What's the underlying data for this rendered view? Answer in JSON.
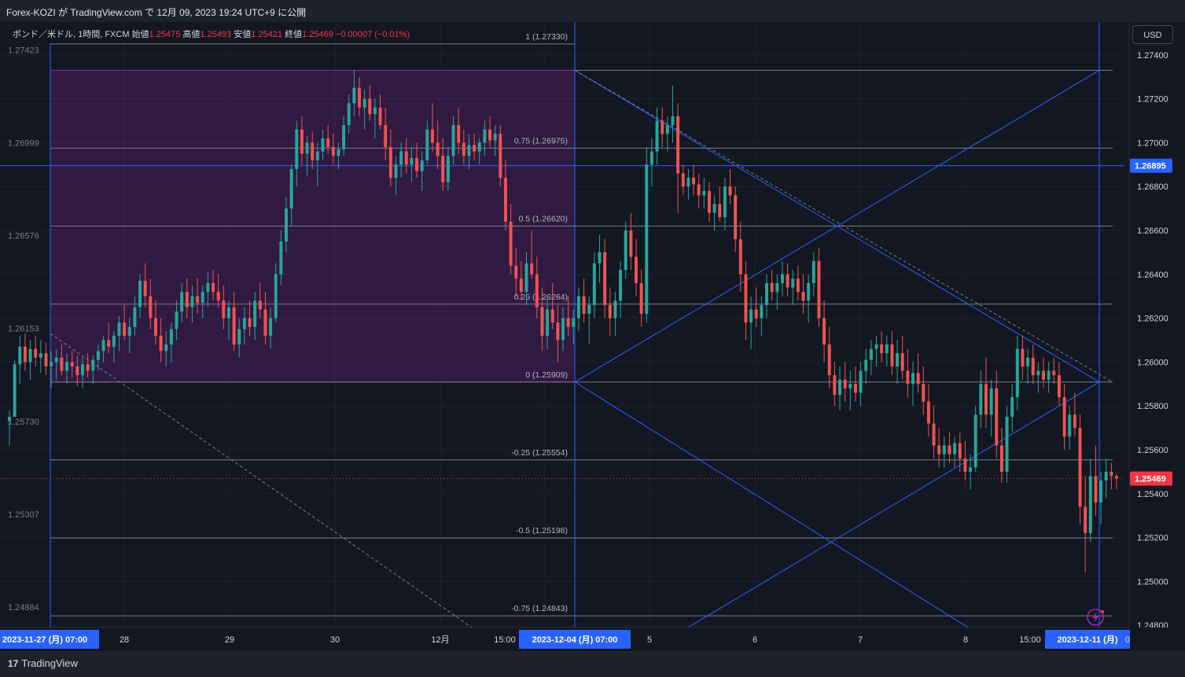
{
  "header": {
    "title": "Forex-KOZI が TradingView.com で 12月 09, 2023 19:24 UTC+9 に公開"
  },
  "legend": {
    "symbol": "ポンド／米ドル, 1時間, FXCM",
    "open_label": "始値",
    "open": "1.25475",
    "high_label": "高値",
    "high": "1.25493",
    "low_label": "安値",
    "low": "1.25421",
    "close_label": "終値",
    "close": "1.25469",
    "change": "−0.00007 (−0.01%)"
  },
  "currency_button": "USD",
  "footer": {
    "brand": "TradingView",
    "brand_mark": "17"
  },
  "colors": {
    "up": "#26a69a",
    "down": "#ef5350",
    "line": "#2962ff",
    "zone": "#9c27b0",
    "background": "#131722"
  },
  "chart_data": {
    "type": "candlestick",
    "symbol": "GBPUSD",
    "timeframe": "1h",
    "ylim": [
      1.2479,
      1.2755
    ],
    "left_scale_ticks": [
      "1.27423",
      "1.26999",
      "1.26576",
      "1.26153",
      "1.25730",
      "1.25307",
      "1.24884"
    ],
    "right_scale_ticks": [
      "1.27400",
      "1.27200",
      "1.27000",
      "1.26800",
      "1.26600",
      "1.26400",
      "1.26200",
      "1.26000",
      "1.25800",
      "1.25600",
      "1.25400",
      "1.25200",
      "1.25000",
      "1.24800"
    ],
    "time_axis_labels": [
      "2023-11-27 (月)  07:00",
      "28",
      "29",
      "30",
      "12月",
      "15:00",
      "2023-12-04 (月)  07:00",
      "5",
      "6",
      "7",
      "8",
      "15:00",
      "2023-12-11 (月)",
      "0"
    ],
    "price_badges": [
      {
        "value": "1.26895",
        "price": 1.26895,
        "color": "#2962ff"
      },
      {
        "value": "1.25469",
        "price": 1.25469,
        "color": "#f23645"
      }
    ],
    "fib_left": {
      "levels": [
        {
          "label": "1 (1.27330)",
          "price": 1.2733
        },
        {
          "label": "0.75 (1.26975)",
          "price": 1.26975
        },
        {
          "label": "0.5 (1.26620)",
          "price": 1.2662
        },
        {
          "label": "0.25 (1.26264)",
          "price": 1.26264
        },
        {
          "label": "0 (1.25909)",
          "price": 1.25909
        },
        {
          "label": "-0.25 (1.25554)",
          "price": 1.25554
        },
        {
          "label": "-0.5 (1.25198)",
          "price": 1.25198
        },
        {
          "label": "-0.75 (1.24843)",
          "price": 1.24843
        }
      ]
    },
    "candles": [
      [
        1.2573,
        1.2578,
        1.2562,
        1.2575
      ],
      [
        1.2575,
        1.2601,
        1.2575,
        1.2599
      ],
      [
        1.2599,
        1.2612,
        1.259,
        1.2607
      ],
      [
        1.2607,
        1.2613,
        1.2596,
        1.26
      ],
      [
        1.26,
        1.261,
        1.2592,
        1.2606
      ],
      [
        1.2606,
        1.2612,
        1.2598,
        1.2602
      ],
      [
        1.2602,
        1.261,
        1.2595,
        1.2604
      ],
      [
        1.2604,
        1.2609,
        1.2594,
        1.2598
      ],
      [
        1.2598,
        1.2605,
        1.2588,
        1.26
      ],
      [
        1.26,
        1.2606,
        1.2592,
        1.2602
      ],
      [
        1.2602,
        1.2608,
        1.2594,
        1.2596
      ],
      [
        1.2596,
        1.2604,
        1.259,
        1.26
      ],
      [
        1.26,
        1.2605,
        1.2593,
        1.2598
      ],
      [
        1.2598,
        1.2603,
        1.2589,
        1.2594
      ],
      [
        1.2594,
        1.2602,
        1.2588,
        1.2599
      ],
      [
        1.2599,
        1.2604,
        1.2593,
        1.2596
      ],
      [
        1.2596,
        1.2603,
        1.259,
        1.2601
      ],
      [
        1.2601,
        1.2608,
        1.2596,
        1.2605
      ],
      [
        1.2605,
        1.2612,
        1.26,
        1.261
      ],
      [
        1.261,
        1.2618,
        1.2604,
        1.2607
      ],
      [
        1.2607,
        1.2614,
        1.26,
        1.2612
      ],
      [
        1.2612,
        1.2621,
        1.2605,
        1.2618
      ],
      [
        1.2618,
        1.2626,
        1.261,
        1.2612
      ],
      [
        1.2612,
        1.262,
        1.2604,
        1.2616
      ],
      [
        1.2616,
        1.263,
        1.2612,
        1.2625
      ],
      [
        1.2625,
        1.264,
        1.262,
        1.2637
      ],
      [
        1.2637,
        1.2645,
        1.2625,
        1.263
      ],
      [
        1.263,
        1.2638,
        1.2615,
        1.262
      ],
      [
        1.262,
        1.2628,
        1.2608,
        1.2612
      ],
      [
        1.2612,
        1.262,
        1.26,
        1.2605
      ],
      [
        1.2605,
        1.2614,
        1.2598,
        1.2608
      ],
      [
        1.2608,
        1.2618,
        1.26,
        1.2615
      ],
      [
        1.2615,
        1.2628,
        1.261,
        1.2623
      ],
      [
        1.2623,
        1.2636,
        1.2618,
        1.2632
      ],
      [
        1.2632,
        1.2638,
        1.262,
        1.2625
      ],
      [
        1.2625,
        1.2635,
        1.2618,
        1.263
      ],
      [
        1.263,
        1.2638,
        1.2622,
        1.2627
      ],
      [
        1.2627,
        1.2635,
        1.262,
        1.2632
      ],
      [
        1.2632,
        1.2641,
        1.2625,
        1.2636
      ],
      [
        1.2636,
        1.2642,
        1.2628,
        1.2632
      ],
      [
        1.2632,
        1.264,
        1.2625,
        1.2628
      ],
      [
        1.2628,
        1.2635,
        1.2615,
        1.262
      ],
      [
        1.262,
        1.2628,
        1.261,
        1.2625
      ],
      [
        1.2625,
        1.2632,
        1.2605,
        1.2608
      ],
      [
        1.2608,
        1.262,
        1.2602,
        1.2615
      ],
      [
        1.2615,
        1.2625,
        1.2608,
        1.262
      ],
      [
        1.262,
        1.2628,
        1.2612,
        1.2616
      ],
      [
        1.2616,
        1.2632,
        1.261,
        1.2628
      ],
      [
        1.2628,
        1.2636,
        1.262,
        1.2624
      ],
      [
        1.2624,
        1.2632,
        1.2608,
        1.2612
      ],
      [
        1.2612,
        1.2625,
        1.2606,
        1.262
      ],
      [
        1.262,
        1.2645,
        1.2618,
        1.264
      ],
      [
        1.264,
        1.266,
        1.2635,
        1.2655
      ],
      [
        1.2655,
        1.2675,
        1.265,
        1.267
      ],
      [
        1.267,
        1.269,
        1.2662,
        1.2688
      ],
      [
        1.2688,
        1.271,
        1.268,
        1.2706
      ],
      [
        1.2706,
        1.2712,
        1.269,
        1.2695
      ],
      [
        1.2695,
        1.2703,
        1.2685,
        1.27
      ],
      [
        1.27,
        1.2705,
        1.2688,
        1.2692
      ],
      [
        1.2692,
        1.27,
        1.268,
        1.2696
      ],
      [
        1.2696,
        1.2706,
        1.2692,
        1.2702
      ],
      [
        1.2702,
        1.2708,
        1.2695,
        1.2698
      ],
      [
        1.2698,
        1.2704,
        1.269,
        1.2694
      ],
      [
        1.2694,
        1.27,
        1.2688,
        1.2697
      ],
      [
        1.2697,
        1.2712,
        1.2694,
        1.2708
      ],
      [
        1.2708,
        1.2722,
        1.2704,
        1.2718
      ],
      [
        1.2718,
        1.2733,
        1.2712,
        1.2725
      ],
      [
        1.2725,
        1.273,
        1.2712,
        1.2716
      ],
      [
        1.2716,
        1.2724,
        1.2706,
        1.272
      ],
      [
        1.272,
        1.2726,
        1.271,
        1.2713
      ],
      [
        1.2713,
        1.272,
        1.2702,
        1.2716
      ],
      [
        1.2716,
        1.2722,
        1.2706,
        1.2708
      ],
      [
        1.2708,
        1.2716,
        1.2692,
        1.2698
      ],
      [
        1.2698,
        1.2706,
        1.268,
        1.2684
      ],
      [
        1.2684,
        1.2694,
        1.2676,
        1.269
      ],
      [
        1.269,
        1.27,
        1.2684,
        1.2696
      ],
      [
        1.2696,
        1.2702,
        1.2686,
        1.269
      ],
      [
        1.269,
        1.2698,
        1.2682,
        1.2693
      ],
      [
        1.2693,
        1.27,
        1.2684,
        1.2687
      ],
      [
        1.2687,
        1.2696,
        1.2678,
        1.2692
      ],
      [
        1.2692,
        1.271,
        1.269,
        1.2706
      ],
      [
        1.2706,
        1.2718,
        1.2696,
        1.27
      ],
      [
        1.27,
        1.271,
        1.2688,
        1.2694
      ],
      [
        1.2694,
        1.2702,
        1.2678,
        1.2682
      ],
      [
        1.2682,
        1.2698,
        1.2678,
        1.2694
      ],
      [
        1.2694,
        1.2712,
        1.269,
        1.2708
      ],
      [
        1.2708,
        1.2716,
        1.2695,
        1.27
      ],
      [
        1.27,
        1.2706,
        1.269,
        1.2694
      ],
      [
        1.2694,
        1.2704,
        1.2688,
        1.2699
      ],
      [
        1.2699,
        1.2704,
        1.2692,
        1.2696
      ],
      [
        1.2696,
        1.2702,
        1.269,
        1.27
      ],
      [
        1.27,
        1.271,
        1.2694,
        1.2706
      ],
      [
        1.2706,
        1.2712,
        1.2698,
        1.2701
      ],
      [
        1.2701,
        1.2708,
        1.2694,
        1.2704
      ],
      [
        1.2704,
        1.2708,
        1.268,
        1.2684
      ],
      [
        1.2684,
        1.2692,
        1.266,
        1.2664
      ],
      [
        1.2664,
        1.2672,
        1.264,
        1.2644
      ],
      [
        1.2644,
        1.2652,
        1.263,
        1.2638
      ],
      [
        1.2638,
        1.2646,
        1.2628,
        1.2632
      ],
      [
        1.2632,
        1.265,
        1.2626,
        1.2645
      ],
      [
        1.2645,
        1.266,
        1.2638,
        1.264
      ],
      [
        1.264,
        1.2648,
        1.262,
        1.2625
      ],
      [
        1.2625,
        1.2634,
        1.2605,
        1.2612
      ],
      [
        1.2612,
        1.263,
        1.2606,
        1.2624
      ],
      [
        1.2624,
        1.2636,
        1.2615,
        1.2618
      ],
      [
        1.2618,
        1.2626,
        1.26,
        1.261
      ],
      [
        1.261,
        1.2625,
        1.2605,
        1.262
      ],
      [
        1.262,
        1.263,
        1.2612,
        1.2616
      ],
      [
        1.2616,
        1.2624,
        1.2608,
        1.262
      ],
      [
        1.262,
        1.2634,
        1.2614,
        1.263
      ],
      [
        1.263,
        1.2638,
        1.2618,
        1.2622
      ],
      [
        1.2622,
        1.263,
        1.2608,
        1.2626
      ],
      [
        1.2626,
        1.265,
        1.262,
        1.2645
      ],
      [
        1.2645,
        1.2658,
        1.2636,
        1.265
      ],
      [
        1.265,
        1.2656,
        1.262,
        1.2626
      ],
      [
        1.2626,
        1.2634,
        1.2612,
        1.262
      ],
      [
        1.262,
        1.2632,
        1.2612,
        1.2628
      ],
      [
        1.2628,
        1.2646,
        1.262,
        1.2642
      ],
      [
        1.2642,
        1.2664,
        1.2638,
        1.266
      ],
      [
        1.266,
        1.2668,
        1.2642,
        1.2648
      ],
      [
        1.2648,
        1.2656,
        1.263,
        1.2636
      ],
      [
        1.2636,
        1.2642,
        1.2616,
        1.2622
      ],
      [
        1.2622,
        1.2698,
        1.2618,
        1.269
      ],
      [
        1.269,
        1.2702,
        1.268,
        1.2696
      ],
      [
        1.2696,
        1.2716,
        1.269,
        1.271
      ],
      [
        1.271,
        1.2716,
        1.2698,
        1.2704
      ],
      [
        1.2704,
        1.2712,
        1.2696,
        1.2708
      ],
      [
        1.2708,
        1.2726,
        1.27,
        1.2712
      ],
      [
        1.2712,
        1.2718,
        1.2668,
        1.2686
      ],
      [
        1.2686,
        1.269,
        1.2676,
        1.268
      ],
      [
        1.268,
        1.2688,
        1.2674,
        1.2684
      ],
      [
        1.2684,
        1.269,
        1.2676,
        1.2681
      ],
      [
        1.2681,
        1.2686,
        1.267,
        1.2676
      ],
      [
        1.2676,
        1.2684,
        1.267,
        1.2678
      ],
      [
        1.2678,
        1.2682,
        1.2664,
        1.2668
      ],
      [
        1.2668,
        1.2676,
        1.266,
        1.2672
      ],
      [
        1.2672,
        1.268,
        1.2664,
        1.2666
      ],
      [
        1.2666,
        1.2684,
        1.266,
        1.268
      ],
      [
        1.268,
        1.2688,
        1.2672,
        1.2676
      ],
      [
        1.2676,
        1.268,
        1.265,
        1.2656
      ],
      [
        1.2656,
        1.2664,
        1.2632,
        1.264
      ],
      [
        1.264,
        1.2646,
        1.261,
        1.2618
      ],
      [
        1.2618,
        1.263,
        1.2606,
        1.2624
      ],
      [
        1.2624,
        1.2634,
        1.2616,
        1.262
      ],
      [
        1.262,
        1.263,
        1.2612,
        1.2626
      ],
      [
        1.2626,
        1.264,
        1.262,
        1.2636
      ],
      [
        1.2636,
        1.2642,
        1.2628,
        1.2632
      ],
      [
        1.2632,
        1.264,
        1.2624,
        1.2636
      ],
      [
        1.2636,
        1.2646,
        1.263,
        1.264
      ],
      [
        1.264,
        1.2645,
        1.263,
        1.2634
      ],
      [
        1.2634,
        1.2642,
        1.2626,
        1.2638
      ],
      [
        1.2638,
        1.2644,
        1.2628,
        1.2632
      ],
      [
        1.2632,
        1.264,
        1.2622,
        1.2628
      ],
      [
        1.2628,
        1.264,
        1.2618,
        1.2636
      ],
      [
        1.2636,
        1.265,
        1.263,
        1.2646
      ],
      [
        1.2646,
        1.2652,
        1.2616,
        1.262
      ],
      [
        1.262,
        1.2628,
        1.26,
        1.2608
      ],
      [
        1.2608,
        1.2616,
        1.2588,
        1.2594
      ],
      [
        1.2594,
        1.26,
        1.258,
        1.2585
      ],
      [
        1.2585,
        1.2598,
        1.2578,
        1.2592
      ],
      [
        1.2592,
        1.26,
        1.2582,
        1.2588
      ],
      [
        1.2588,
        1.2596,
        1.2578,
        1.259
      ],
      [
        1.259,
        1.2598,
        1.2582,
        1.2586
      ],
      [
        1.2586,
        1.26,
        1.258,
        1.2596
      ],
      [
        1.2596,
        1.2606,
        1.259,
        1.2601
      ],
      [
        1.2601,
        1.261,
        1.2594,
        1.2606
      ],
      [
        1.2606,
        1.2612,
        1.2598,
        1.2608
      ],
      [
        1.2608,
        1.2614,
        1.26,
        1.2604
      ],
      [
        1.2604,
        1.2612,
        1.2598,
        1.2608
      ],
      [
        1.2608,
        1.2614,
        1.2594,
        1.2598
      ],
      [
        1.2598,
        1.261,
        1.259,
        1.2604
      ],
      [
        1.2604,
        1.2612,
        1.2592,
        1.2596
      ],
      [
        1.2596,
        1.2606,
        1.2584,
        1.259
      ],
      [
        1.259,
        1.26,
        1.258,
        1.2595
      ],
      [
        1.2595,
        1.2604,
        1.2586,
        1.259
      ],
      [
        1.259,
        1.2598,
        1.2576,
        1.2582
      ],
      [
        1.2582,
        1.259,
        1.2566,
        1.2572
      ],
      [
        1.2572,
        1.258,
        1.2556,
        1.2562
      ],
      [
        1.2562,
        1.257,
        1.2552,
        1.2558
      ],
      [
        1.2558,
        1.2566,
        1.2552,
        1.2562
      ],
      [
        1.2562,
        1.2568,
        1.2554,
        1.2558
      ],
      [
        1.2558,
        1.2566,
        1.2552,
        1.2563
      ],
      [
        1.2563,
        1.2568,
        1.255,
        1.2556
      ],
      [
        1.2556,
        1.2564,
        1.2546,
        1.255
      ],
      [
        1.255,
        1.2558,
        1.2542,
        1.2552
      ],
      [
        1.2552,
        1.258,
        1.255,
        1.2576
      ],
      [
        1.2576,
        1.2596,
        1.257,
        1.259
      ],
      [
        1.259,
        1.2602,
        1.257,
        1.2576
      ],
      [
        1.2576,
        1.2592,
        1.2566,
        1.2588
      ],
      [
        1.2588,
        1.2596,
        1.2556,
        1.2562
      ],
      [
        1.2562,
        1.257,
        1.2545,
        1.255
      ],
      [
        1.255,
        1.258,
        1.2545,
        1.2575
      ],
      [
        1.2575,
        1.259,
        1.2568,
        1.2584
      ],
      [
        1.2584,
        1.2612,
        1.2578,
        1.2606
      ],
      [
        1.2606,
        1.2612,
        1.2592,
        1.2598
      ],
      [
        1.2598,
        1.2606,
        1.259,
        1.2602
      ],
      [
        1.2602,
        1.2608,
        1.259,
        1.2594
      ],
      [
        1.2594,
        1.26,
        1.2586,
        1.2596
      ],
      [
        1.2596,
        1.2602,
        1.2588,
        1.2592
      ],
      [
        1.2592,
        1.26,
        1.2586,
        1.2596
      ],
      [
        1.2596,
        1.2602,
        1.259,
        1.2594
      ],
      [
        1.2594,
        1.26,
        1.258,
        1.2584
      ],
      [
        1.2584,
        1.259,
        1.256,
        1.2566
      ],
      [
        1.2566,
        1.258,
        1.256,
        1.2576
      ],
      [
        1.2576,
        1.2586,
        1.2566,
        1.257
      ],
      [
        1.257,
        1.2576,
        1.2526,
        1.2534
      ],
      [
        1.2534,
        1.2548,
        1.2504,
        1.2522
      ],
      [
        1.2522,
        1.2556,
        1.2518,
        1.2548
      ],
      [
        1.2548,
        1.2562,
        1.253,
        1.2536
      ],
      [
        1.2536,
        1.255,
        1.2526,
        1.2546
      ],
      [
        1.2546,
        1.2556,
        1.2538,
        1.255
      ],
      [
        1.255,
        1.2554,
        1.2542,
        1.2548
      ],
      [
        1.2548,
        1.2549,
        1.2542,
        1.2547
      ]
    ]
  }
}
